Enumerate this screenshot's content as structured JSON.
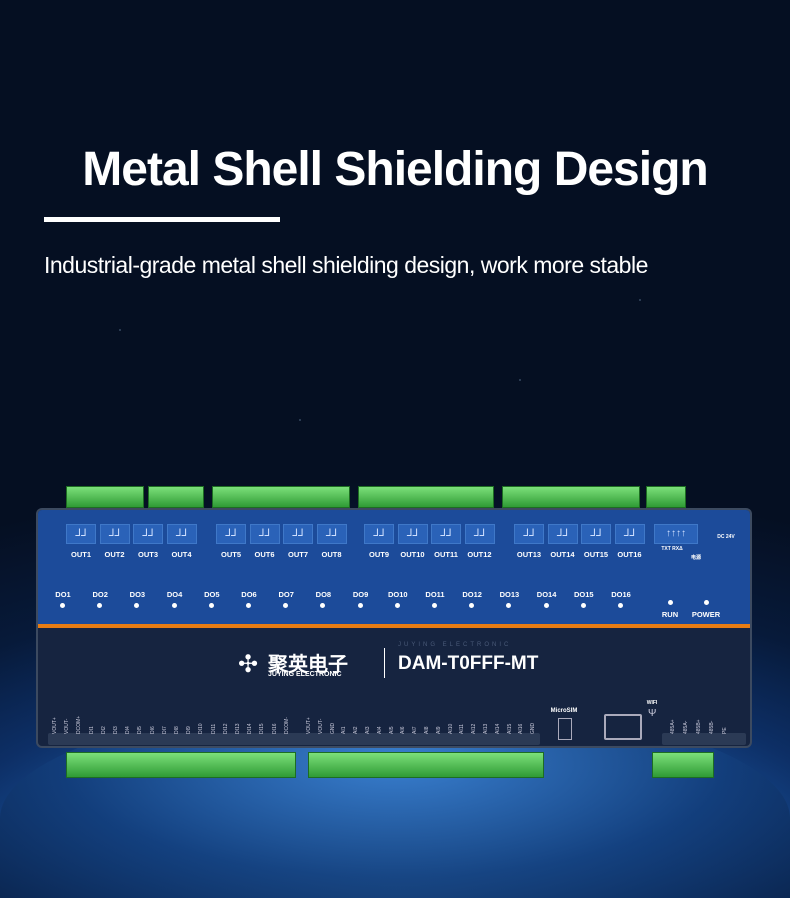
{
  "headline": "Metal Shell Shielding Design",
  "subtitle": "Industrial-grade metal shell shielding design, work more stable",
  "device": {
    "model": "DAM-T0FFF-MT",
    "brand_cn": "聚英电子",
    "brand_en": "JUYING ELECTRONIC",
    "brand_watermark": "JUYING ELECTRONIC",
    "outputs": [
      "OUT1",
      "OUT2",
      "OUT3",
      "OUT4",
      "OUT5",
      "OUT6",
      "OUT7",
      "OUT8",
      "OUT9",
      "OUT10",
      "OUT11",
      "OUT12",
      "OUT13",
      "OUT14",
      "OUT15",
      "OUT16"
    ],
    "do_leds": [
      "DO1",
      "DO2",
      "DO3",
      "DO4",
      "DO5",
      "DO6",
      "DO7",
      "DO8",
      "DO9",
      "DO10",
      "DO11",
      "DO12",
      "DO13",
      "DO14",
      "DO15",
      "DO16"
    ],
    "run": "RUN",
    "power": "POWER",
    "comm": "TXT RXΔ",
    "power_cn": "电源",
    "dc": "DC 24V",
    "microsim": "MicroSIM",
    "di_pins": [
      "VOUT+",
      "VOUT-",
      "DCOM+",
      "DI1",
      "DI2",
      "DI3",
      "DI4",
      "DI5",
      "DI6",
      "DI7",
      "DI8",
      "DI9",
      "DI10",
      "DI11",
      "DI12",
      "DI13",
      "DI14",
      "DI15",
      "DI16",
      "DCOM-"
    ],
    "ai_pins": [
      "VOUT+",
      "VOUT-",
      "GND",
      "AI1",
      "AI2",
      "AI3",
      "AI4",
      "AI5",
      "AI6",
      "AI7",
      "AI8",
      "AI9",
      "AI10",
      "AI11",
      "AI12",
      "AI13",
      "AI14",
      "AI15",
      "AI16",
      "GND"
    ],
    "rs_pins": [
      "485A+",
      "485A-",
      "485B+",
      "485B-",
      "PE"
    ],
    "wifi": "WIFI"
  },
  "colors": {
    "panel_blue": "#1c4b9a",
    "panel_dark": "#162440",
    "accent_orange": "#e87c12",
    "terminal_green": "#4cc24e"
  }
}
